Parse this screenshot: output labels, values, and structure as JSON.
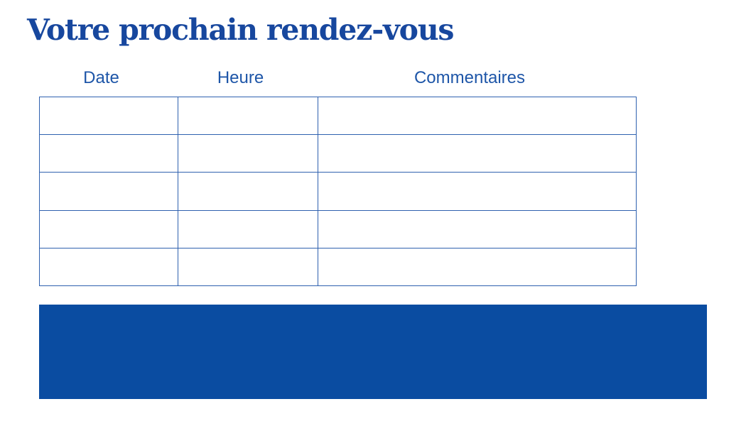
{
  "page": {
    "title": "Votre prochain rendez-vous"
  },
  "table": {
    "headers": [
      "Date",
      "Heure",
      "Commentaires"
    ],
    "column_keys": [
      "date",
      "heure",
      "commentaires"
    ],
    "row_count": 5,
    "rows": [
      [
        "",
        "",
        ""
      ],
      [
        "",
        "",
        ""
      ],
      [
        "",
        "",
        ""
      ],
      [
        "",
        "",
        ""
      ],
      [
        "",
        "",
        ""
      ]
    ]
  },
  "banner": {
    "text": ""
  },
  "colors": {
    "title_color": "#17479e",
    "header_text": "#1e56a8",
    "table_border": "#2f61af",
    "banner_bg": "#0a4ca1",
    "page_bg": "#ffffff"
  }
}
